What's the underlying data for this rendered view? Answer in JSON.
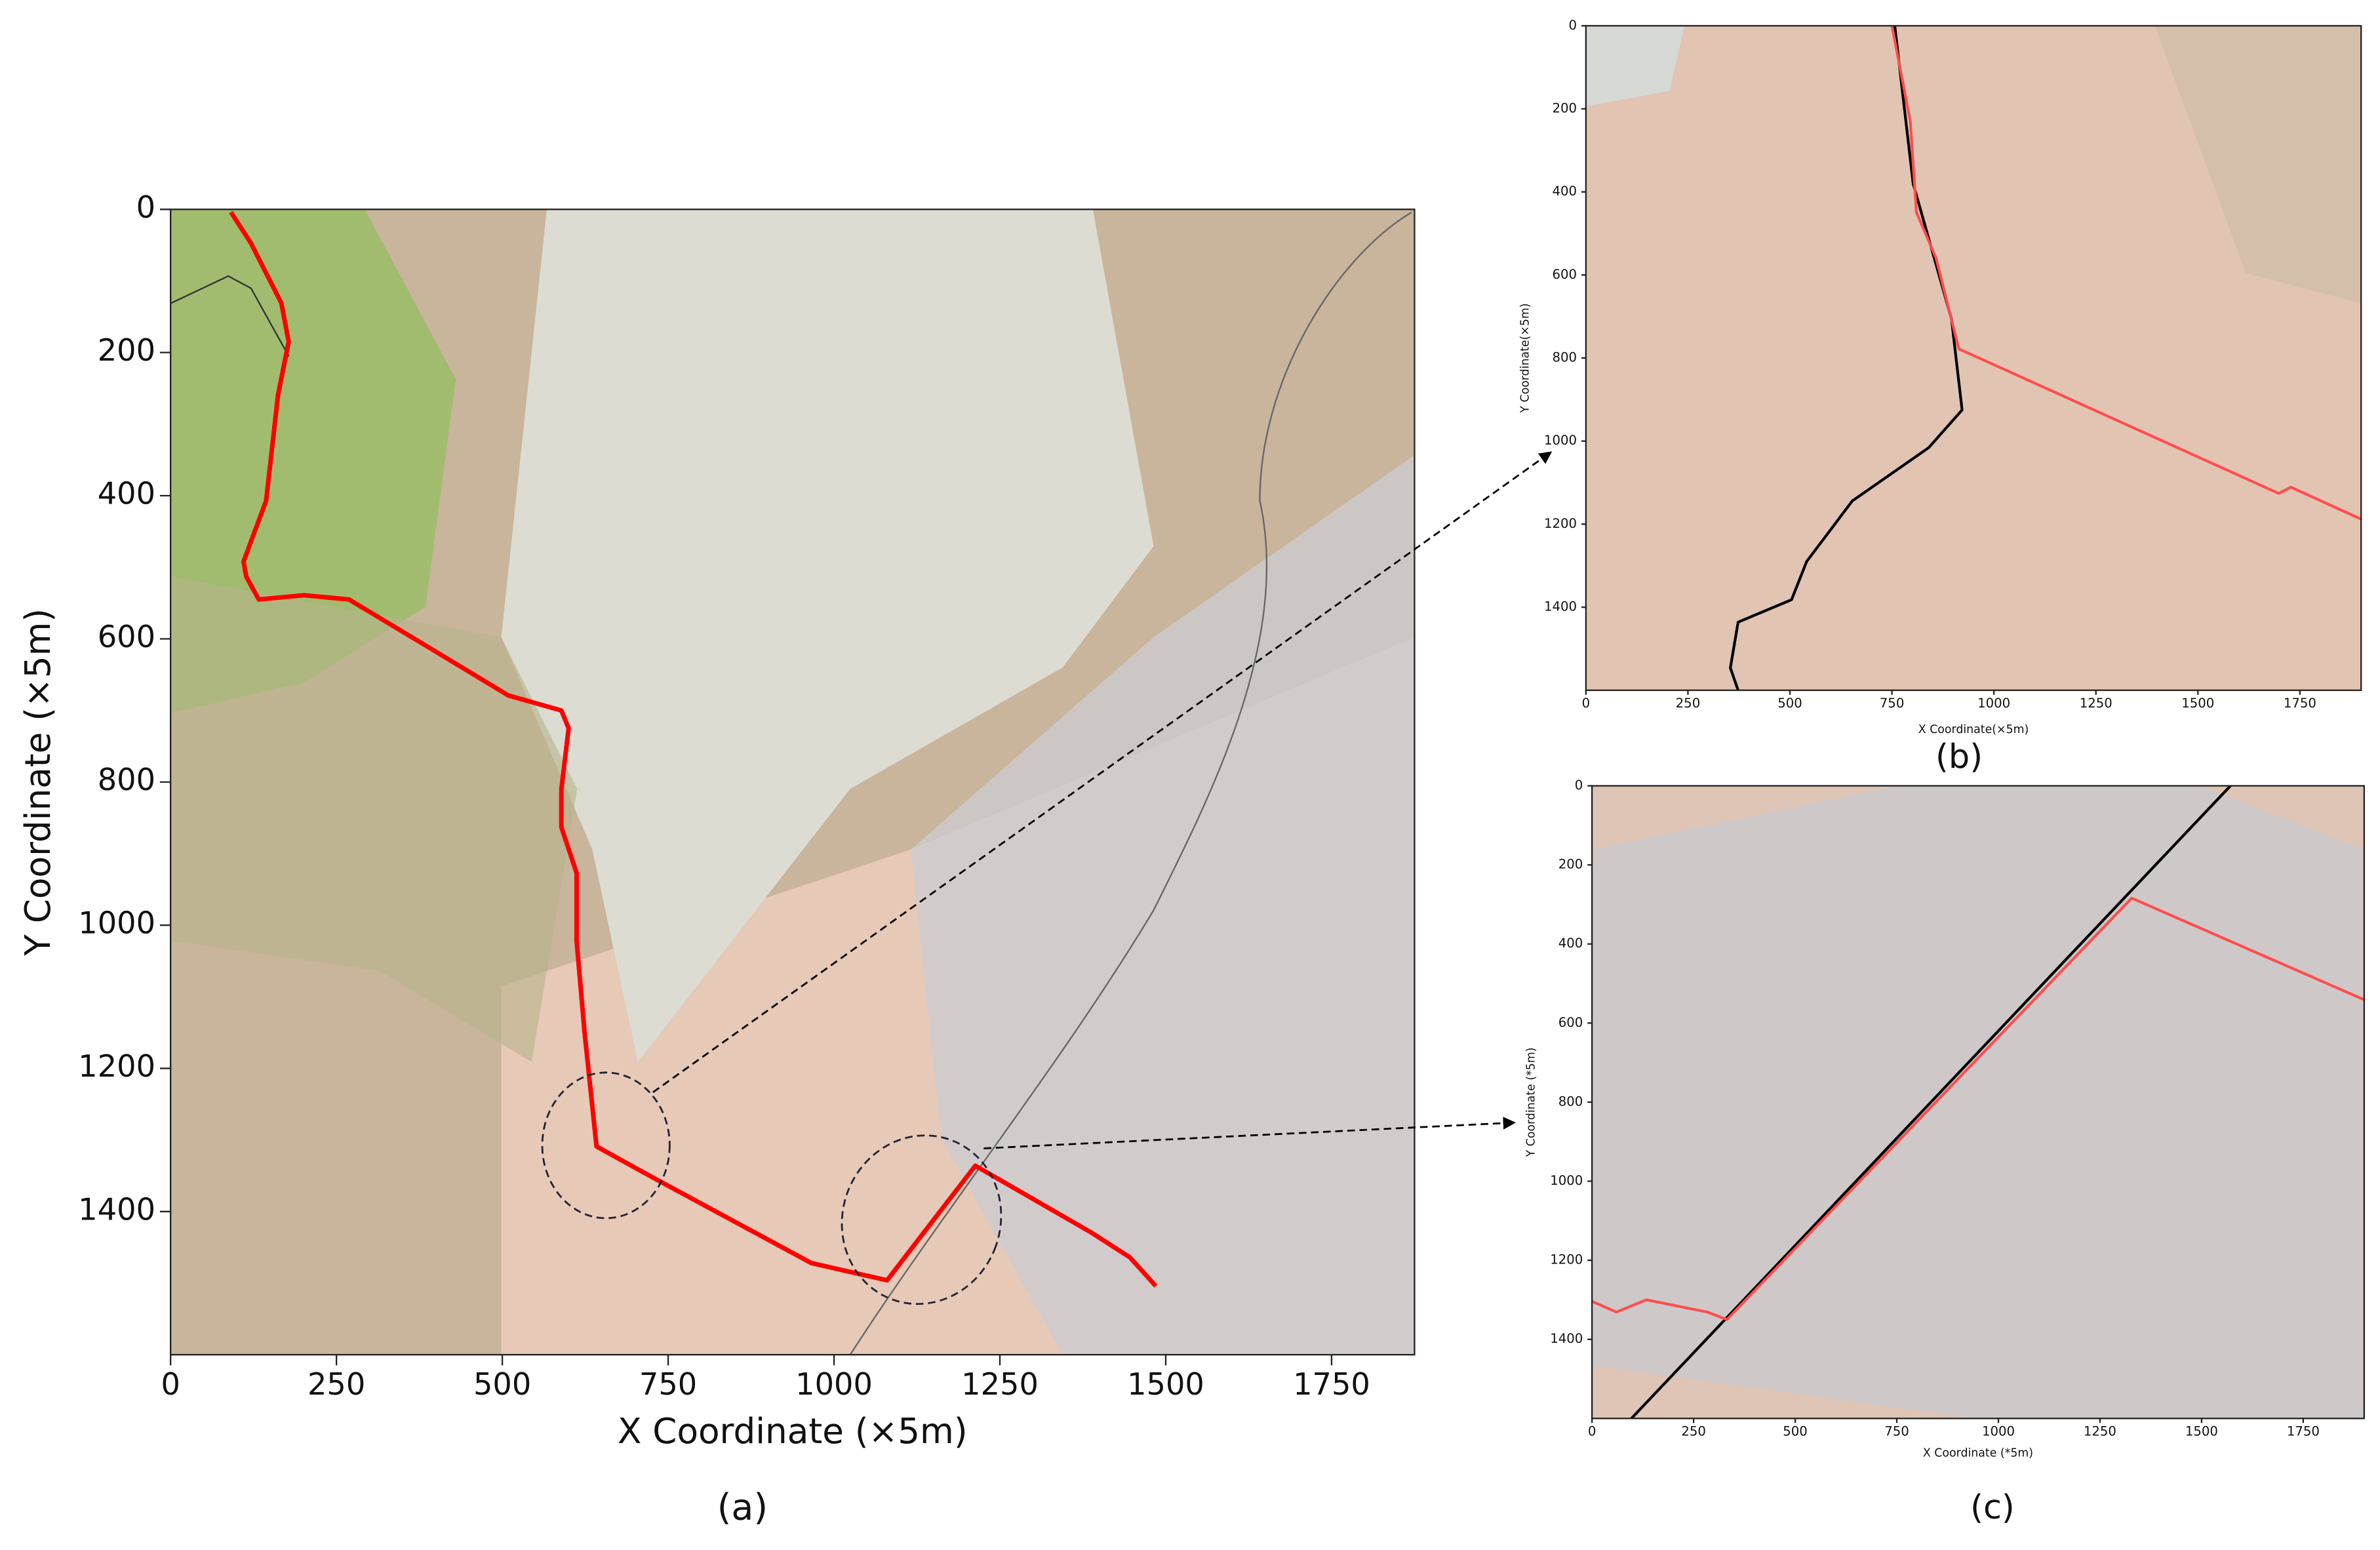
{
  "chart_data": [
    {
      "type": "line",
      "caption": "(a)",
      "x_label": "X Coordinate (×5m)",
      "y_label": "Y Coordinate (×5m)",
      "xlim": [
        0,
        1875
      ],
      "ylim": [
        0,
        1600
      ],
      "y_inverted": true,
      "xticks": [
        0,
        250,
        500,
        750,
        1000,
        1250,
        1500,
        1750
      ],
      "yticks": [
        0,
        200,
        400,
        600,
        800,
        1000,
        1200,
        1400
      ],
      "series": [
        {
          "color": "#ff0000",
          "x": [
            91,
            121,
            167,
            178,
            162,
            144,
            110,
            114,
            133,
            201,
            269,
            384,
            509,
            589,
            600,
            589,
            589,
            612,
            612,
            624,
            642,
            726,
            966,
            1080,
            1213,
            1389,
            1446,
            1485
          ],
          "values": [
            4,
            47,
            131,
            185,
            259,
            407,
            492,
            513,
            545,
            539,
            545,
            609,
            679,
            700,
            725,
            810,
            863,
            927,
            1022,
            1150,
            1309,
            1352,
            1472,
            1496,
            1336,
            1430,
            1464,
            1504
          ]
        }
      ]
    },
    {
      "type": "line",
      "caption": "(b)",
      "x_label": "X Coordinate(×5m)",
      "y_label": "Y Coordinate(×5m)",
      "xlim": [
        0,
        1900
      ],
      "ylim": [
        0,
        1600
      ],
      "y_inverted": true,
      "xticks": [
        0,
        250,
        500,
        750,
        1000,
        1250,
        1500,
        1750
      ],
      "yticks": [
        0,
        200,
        400,
        600,
        800,
        1000,
        1200,
        1400
      ],
      "series": [
        {
          "color": "#000000",
          "x": [
            757,
            802,
            896,
            922,
            840,
            653,
            541,
            504,
            373,
            354,
            373
          ],
          "values": [
            0,
            380,
            706,
            925,
            1016,
            1144,
            1290,
            1382,
            1436,
            1546,
            1600
          ]
        },
        {
          "color": "#ff4d4d",
          "x": [
            750,
            795,
            810,
            858,
            914,
            1698,
            1728,
            1900
          ],
          "values": [
            0,
            230,
            449,
            559,
            778,
            1126,
            1111,
            1188
          ]
        }
      ]
    },
    {
      "type": "line",
      "caption": "(c)",
      "x_label": "X Coordinate (*5m)",
      "y_label": "Y Coordinate (*5m)",
      "xlim": [
        0,
        1900
      ],
      "ylim": [
        0,
        1600
      ],
      "y_inverted": true,
      "xticks": [
        0,
        250,
        500,
        750,
        1000,
        1250,
        1500,
        1750
      ],
      "yticks": [
        0,
        200,
        400,
        600,
        800,
        1000,
        1200,
        1400
      ],
      "series": [
        {
          "color": "#000000",
          "x": [
            97,
            1571
          ],
          "values": [
            1600,
            0
          ]
        },
        {
          "color": "#ff4d4d",
          "x": [
            0,
            60,
            134,
            284,
            332,
            1328,
            1900
          ],
          "values": [
            1304,
            1331,
            1300,
            1331,
            1350,
            284,
            541
          ]
        }
      ]
    }
  ]
}
